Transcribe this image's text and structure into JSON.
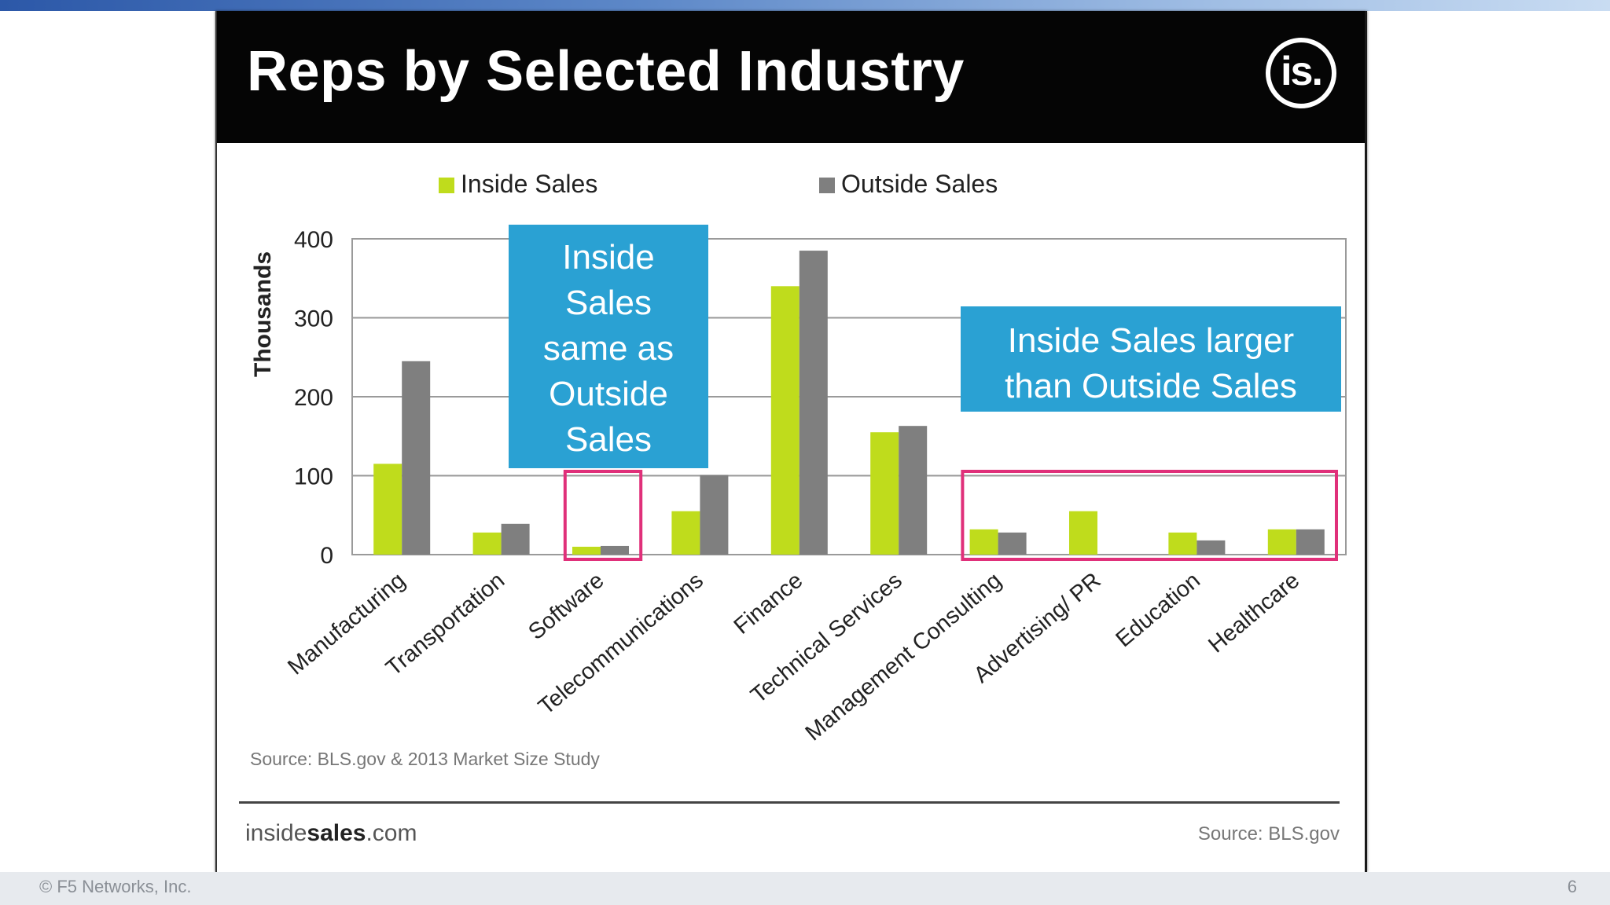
{
  "slide": {
    "title": "Reps by Selected Industry",
    "logo_text": "is.",
    "brand": {
      "prefix": "inside",
      "bold": "sales",
      "suffix": ".com"
    },
    "footer_source": "Source: BLS.gov",
    "copyright": "© F5 Networks, Inc.",
    "page_number": "6"
  },
  "colors": {
    "inside": "#bfdc1c",
    "outside": "#7f7f7f",
    "callout": "#2aa1d3",
    "highlight": "#e0307a"
  },
  "callouts": [
    {
      "lines": [
        "Inside",
        "Sales",
        "same as",
        "Outside",
        "Sales"
      ]
    },
    {
      "lines": [
        "Inside Sales larger",
        "than Outside Sales"
      ]
    }
  ],
  "chart_data": {
    "type": "bar",
    "title": "",
    "ylabel": "Thousands",
    "xlabel": "",
    "ylim": [
      0,
      400
    ],
    "yticks": [
      0,
      100,
      200,
      300,
      400
    ],
    "categories": [
      "Manufacturing",
      "Transportation",
      "Software",
      "Telecommunications",
      "Finance",
      "Technical Services",
      "Management Consulting",
      "Advertising/ PR",
      "Education",
      "Healthcare"
    ],
    "series": [
      {
        "name": "Inside Sales",
        "values": [
          115,
          28,
          10,
          55,
          340,
          155,
          32,
          55,
          28,
          32
        ]
      },
      {
        "name": "Outside Sales",
        "values": [
          245,
          39,
          11,
          101,
          385,
          163,
          28,
          0,
          18,
          32
        ]
      }
    ],
    "legend": "top",
    "source_note": "Source: BLS.gov & 2013 Market Size Study",
    "highlights": [
      {
        "from": "Software",
        "to": "Software"
      },
      {
        "from": "Management Consulting",
        "to": "Healthcare"
      }
    ]
  }
}
